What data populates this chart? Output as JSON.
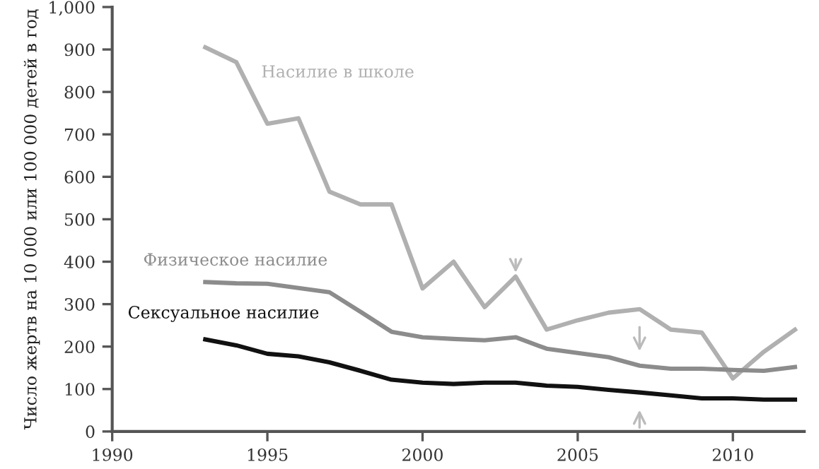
{
  "chart_data": {
    "type": "line",
    "ylabel": "Число жертв на 10 000 или 100 000 детей в год",
    "x": [
      1993,
      1994,
      1995,
      1996,
      1997,
      1998,
      1999,
      2000,
      2001,
      2002,
      2003,
      2004,
      2005,
      2006,
      2007,
      2008,
      2009,
      2010,
      2011,
      2012
    ],
    "series": [
      {
        "name": "Насилие в школе",
        "color": "#b0b0b0",
        "values": [
          905,
          870,
          725,
          738,
          565,
          535,
          535,
          337,
          400,
          293,
          365,
          240,
          262,
          280,
          288,
          240,
          233,
          125,
          188,
          240
        ]
      },
      {
        "name": "Физическое насилие",
        "color": "#8c8c8c",
        "values": [
          352,
          349,
          348,
          338,
          328,
          282,
          235,
          222,
          218,
          215,
          222,
          195,
          185,
          175,
          155,
          148,
          148,
          145,
          143,
          152
        ]
      },
      {
        "name": "Сексуальное насилие",
        "color": "#111111",
        "values": [
          217,
          203,
          183,
          177,
          163,
          143,
          122,
          115,
          112,
          115,
          115,
          108,
          105,
          98,
          92,
          85,
          78,
          78,
          75,
          75
        ]
      }
    ],
    "xlim": [
      1990,
      2012.3
    ],
    "ylim": [
      0,
      1000
    ],
    "xticks": [
      1990,
      1995,
      2000,
      2005,
      2010
    ],
    "yticks": [
      0,
      100,
      200,
      300,
      400,
      500,
      600,
      700,
      800,
      900,
      {
        "value": 1000,
        "label": "1,000"
      }
    ],
    "grid": false,
    "legend": false,
    "marker": "none",
    "line_style": "solid"
  }
}
